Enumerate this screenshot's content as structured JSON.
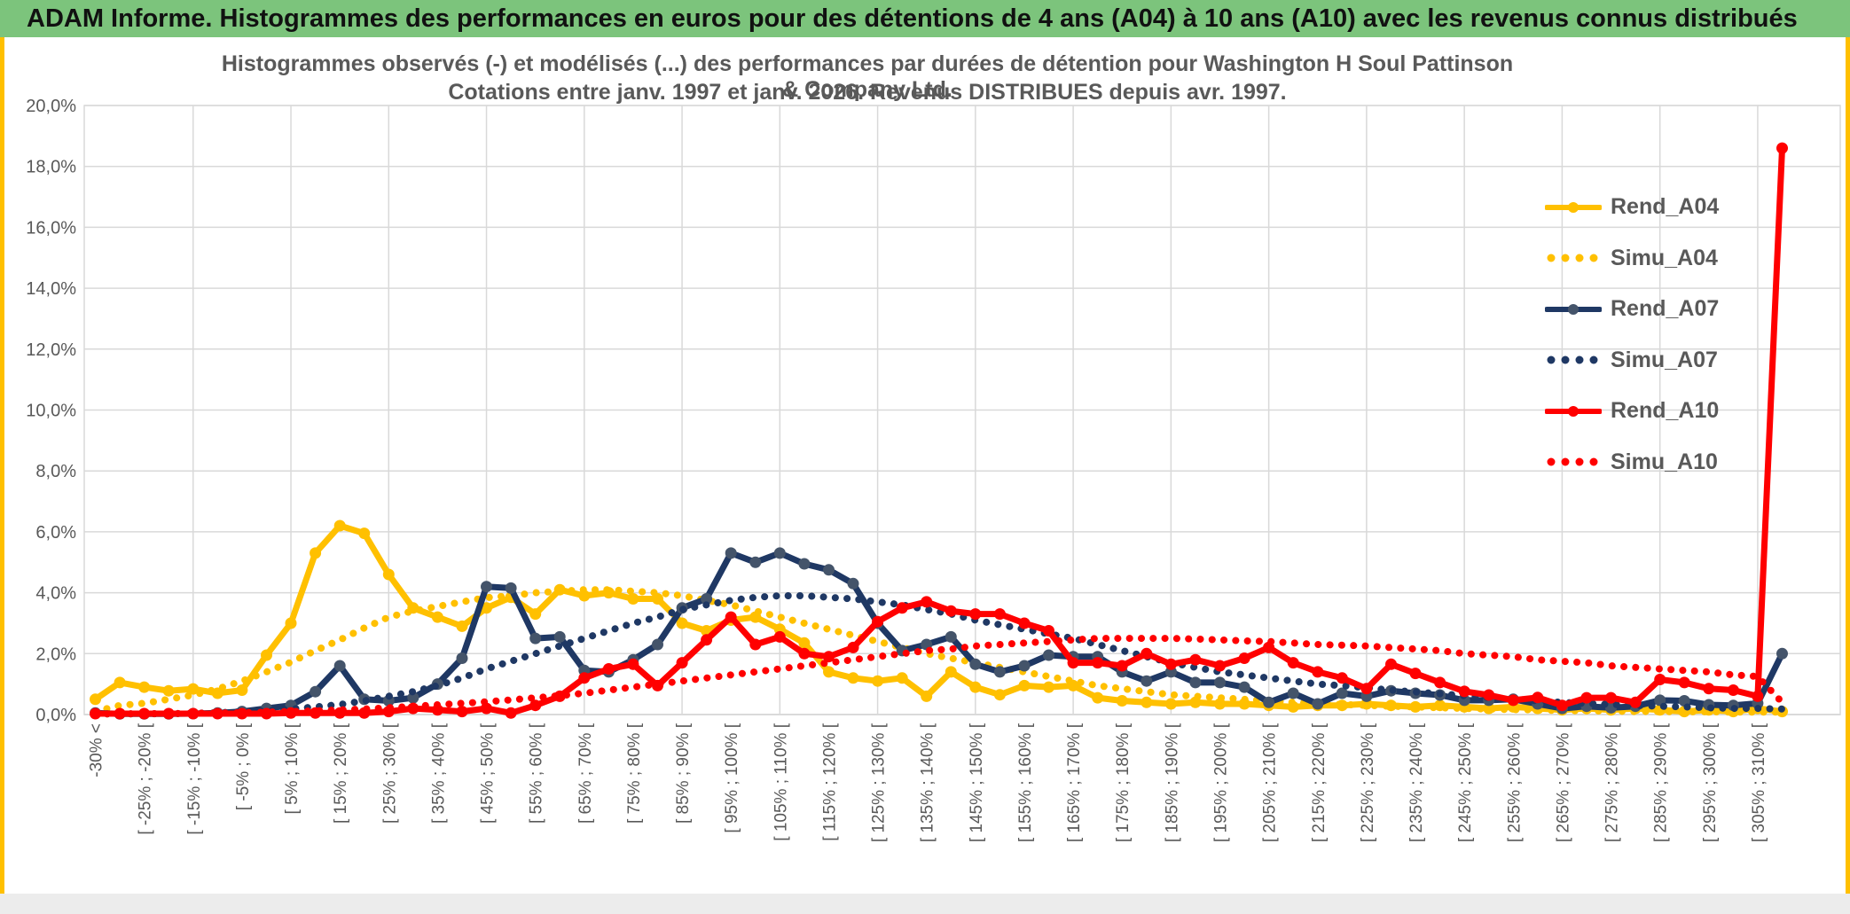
{
  "header": {
    "title": "ADAM Informe. Histogrammes des performances en euros pour des détentions de 4 ans (A04) à 10 ans (A10) avec les revenus connus distribués"
  },
  "chart": {
    "title_line1": "Histogrammes observés (-) et modélisés (...) des performances par durées de détention pour Washington H Soul Pattinson & Company Ltd.",
    "title_line2": "Cotations entre janv. 1997 et janv. 2026. Revenus DISTRIBUES depuis avr. 1997."
  },
  "colors": {
    "header_bg": "#7CC47C",
    "gold_accent": "#FFC000",
    "axis_text": "#595959",
    "grid": "#D9D9D9",
    "axis_line": "#BFBFBF",
    "series_yellow": "#FFC000",
    "series_navy": "#1F3864",
    "series_navy_marker": "#44546A",
    "series_red": "#FF0000"
  },
  "chart_data": {
    "type": "line",
    "title": "Histogrammes observés (-) et modélisés (...) des performances par durées de détention pour Washington H Soul Pattinson & Company Ltd. Cotations entre janv. 1997 et janv. 2026. Revenus DISTRIBUES depuis avr. 1997.",
    "xlabel": "",
    "ylabel": "",
    "ylim": [
      0,
      20
    ],
    "grid": true,
    "legend_position": "inside-right",
    "n_bins": 70,
    "label_every": 2,
    "y_ticks": [
      "0,0%",
      "2,0%",
      "4,0%",
      "6,0%",
      "8,0%",
      "10,0%",
      "12,0%",
      "14,0%",
      "16,0%",
      "18,0%",
      "20,0%"
    ],
    "x_tick_labels": [
      "-30% <",
      "[ -25% ; -20% [",
      "[ -15% ; -10% [",
      "[ -5% ; 0% [",
      "[ 5% ; 10% [",
      "[ 15% ; 20% [",
      "[ 25% ; 30% [",
      "[ 35% ; 40% [",
      "[ 45% ; 50% [",
      "[ 55% ; 60% [",
      "[ 65% ; 70% [",
      "[ 75% ; 80% [",
      "[ 85% ; 90% [",
      "[ 95% ; 100% [",
      "[ 105% ; 110% [",
      "[ 115% ; 120% [",
      "[ 125% ; 130% [",
      "[ 135% ; 140% [",
      "[ 145% ; 150% [",
      "[ 155% ; 160% [",
      "[ 165% ; 170% [",
      "[ 175% ; 180% [",
      "[ 185% ; 190% [",
      "[ 195% ; 200% [",
      "[ 205% ; 210% [",
      "[ 215% ; 220% [",
      "[ 225% ; 230% [",
      "[ 235% ; 240% [",
      "[ 245% ; 250% [",
      "[ 255% ; 260% [",
      "[ 265% ; 270% [",
      "[ 275% ; 280% [",
      "[ 285% ; 290% [",
      "[ 295% ; 300% [",
      "[ 305% ; 310% ["
    ],
    "series": [
      {
        "name": "Rend_A04",
        "color": "#FFC000",
        "marker": "#FFC000",
        "style": "solid",
        "values": [
          0.5,
          1.05,
          0.9,
          0.78,
          0.84,
          0.7,
          0.8,
          1.95,
          3.0,
          5.3,
          6.2,
          5.95,
          4.6,
          3.5,
          3.2,
          2.9,
          3.5,
          3.85,
          3.3,
          4.1,
          3.9,
          4.0,
          3.8,
          3.8,
          3.0,
          2.75,
          3.1,
          3.2,
          2.8,
          2.35,
          1.4,
          1.2,
          1.1,
          1.2,
          0.6,
          1.4,
          0.9,
          0.65,
          0.95,
          0.9,
          0.95,
          0.55,
          0.45,
          0.4,
          0.35,
          0.4,
          0.35,
          0.35,
          0.3,
          0.25,
          0.3,
          0.3,
          0.35,
          0.3,
          0.25,
          0.3,
          0.25,
          0.2,
          0.25,
          0.2,
          0.15,
          0.2,
          0.15,
          0.2,
          0.15,
          0.1,
          0.15,
          0.1,
          0.2,
          0.1
        ]
      },
      {
        "name": "Simu_A04",
        "color": "#FFC000",
        "style": "dotted",
        "values": [
          0.1,
          0.3,
          0.37,
          0.5,
          0.64,
          0.84,
          1.1,
          1.4,
          1.72,
          2.1,
          2.45,
          2.84,
          3.2,
          3.4,
          3.55,
          3.7,
          3.84,
          3.9,
          4.0,
          4.05,
          4.1,
          4.1,
          4.05,
          4.0,
          3.9,
          3.75,
          3.6,
          3.4,
          3.2,
          3.0,
          2.8,
          2.6,
          2.4,
          2.2,
          2.0,
          1.85,
          1.7,
          1.55,
          1.4,
          1.25,
          1.1,
          0.95,
          0.85,
          0.75,
          0.65,
          0.6,
          0.55,
          0.5,
          0.45,
          0.4,
          0.37,
          0.33,
          0.3,
          0.27,
          0.25,
          0.22,
          0.2,
          0.18,
          0.16,
          0.15,
          0.13,
          0.12,
          0.11,
          0.1,
          0.1,
          0.09,
          0.09,
          0.08,
          0.08,
          0.08
        ]
      },
      {
        "name": "Rend_A07",
        "color": "#1F3864",
        "marker": "#44546A",
        "style": "solid",
        "values": [
          0.05,
          0.02,
          0.02,
          0.02,
          0.03,
          0.05,
          0.1,
          0.2,
          0.3,
          0.75,
          1.6,
          0.5,
          0.45,
          0.55,
          1.0,
          1.85,
          4.2,
          4.15,
          2.5,
          2.55,
          1.45,
          1.4,
          1.8,
          2.3,
          3.5,
          3.8,
          5.3,
          5.0,
          5.3,
          4.95,
          4.75,
          4.3,
          3.0,
          2.1,
          2.3,
          2.55,
          1.65,
          1.4,
          1.6,
          1.95,
          1.9,
          1.9,
          1.4,
          1.1,
          1.4,
          1.05,
          1.05,
          0.9,
          0.4,
          0.7,
          0.35,
          0.7,
          0.6,
          0.78,
          0.7,
          0.64,
          0.47,
          0.47,
          0.5,
          0.35,
          0.2,
          0.27,
          0.22,
          0.27,
          0.47,
          0.45,
          0.32,
          0.3,
          0.37,
          2.0
        ]
      },
      {
        "name": "Simu_A07",
        "color": "#1F3864",
        "style": "dotted",
        "values": [
          0.02,
          0.02,
          0.02,
          0.03,
          0.04,
          0.06,
          0.09,
          0.13,
          0.18,
          0.25,
          0.33,
          0.45,
          0.6,
          0.75,
          0.95,
          1.2,
          1.5,
          1.75,
          2.0,
          2.25,
          2.5,
          2.75,
          3.0,
          3.2,
          3.45,
          3.6,
          3.75,
          3.85,
          3.9,
          3.9,
          3.85,
          3.8,
          3.7,
          3.6,
          3.45,
          3.3,
          3.1,
          2.95,
          2.8,
          2.65,
          2.5,
          2.3,
          2.1,
          1.9,
          1.7,
          1.55,
          1.4,
          1.3,
          1.2,
          1.1,
          1.0,
          0.95,
          0.88,
          0.8,
          0.74,
          0.68,
          0.62,
          0.56,
          0.5,
          0.45,
          0.4,
          0.36,
          0.33,
          0.3,
          0.27,
          0.25,
          0.22,
          0.2,
          0.2,
          0.18
        ]
      },
      {
        "name": "Rend_A10",
        "color": "#FF0000",
        "marker": "#FF0000",
        "style": "solid",
        "values": [
          0.03,
          0.03,
          0.03,
          0.03,
          0.03,
          0.03,
          0.03,
          0.03,
          0.05,
          0.05,
          0.05,
          0.05,
          0.1,
          0.2,
          0.15,
          0.1,
          0.2,
          0.05,
          0.3,
          0.6,
          1.2,
          1.5,
          1.65,
          0.95,
          1.7,
          2.45,
          3.2,
          2.3,
          2.55,
          2.0,
          1.9,
          2.2,
          3.05,
          3.5,
          3.7,
          3.4,
          3.3,
          3.3,
          3.0,
          2.75,
          1.7,
          1.7,
          1.6,
          2.0,
          1.65,
          1.8,
          1.6,
          1.85,
          2.2,
          1.7,
          1.4,
          1.2,
          0.85,
          1.65,
          1.35,
          1.05,
          0.76,
          0.64,
          0.47,
          0.56,
          0.3,
          0.55,
          0.55,
          0.4,
          1.15,
          1.05,
          0.85,
          0.8,
          0.6,
          18.6
        ]
      },
      {
        "name": "Simu_A10",
        "color": "#FF0000",
        "style": "dotted",
        "values": [
          0.02,
          0.02,
          0.03,
          0.03,
          0.04,
          0.05,
          0.06,
          0.08,
          0.1,
          0.12,
          0.15,
          0.18,
          0.22,
          0.27,
          0.32,
          0.37,
          0.42,
          0.48,
          0.55,
          0.62,
          0.7,
          0.8,
          0.9,
          1.0,
          1.1,
          1.2,
          1.3,
          1.4,
          1.5,
          1.6,
          1.7,
          1.8,
          1.9,
          2.0,
          2.1,
          2.15,
          2.25,
          2.3,
          2.35,
          2.4,
          2.45,
          2.5,
          2.5,
          2.5,
          2.5,
          2.48,
          2.45,
          2.42,
          2.4,
          2.35,
          2.3,
          2.28,
          2.25,
          2.2,
          2.15,
          2.1,
          2.0,
          1.95,
          1.9,
          1.8,
          1.75,
          1.7,
          1.6,
          1.55,
          1.5,
          1.45,
          1.4,
          1.3,
          1.25,
          0.4
        ]
      }
    ]
  }
}
